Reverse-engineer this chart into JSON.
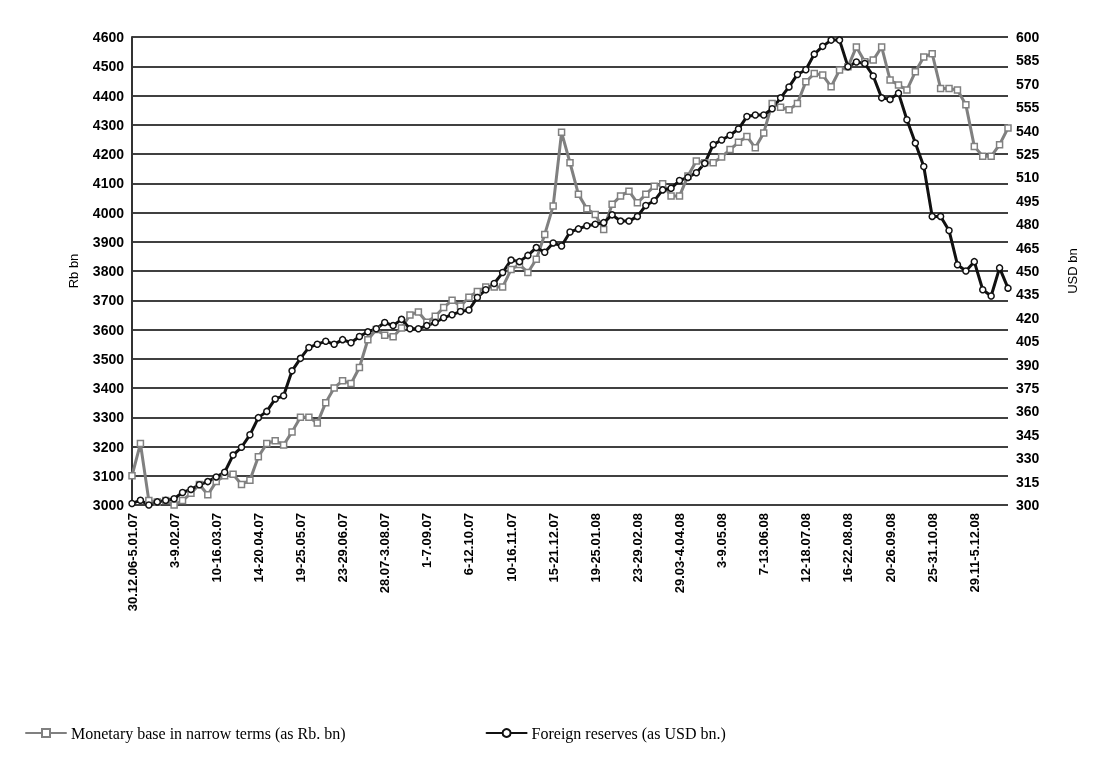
{
  "chart_data": {
    "type": "line",
    "ylabel": "Rb bn",
    "y2label": "USD bn",
    "categories": [
      "30.12.06-5.01.07",
      null,
      null,
      null,
      null,
      "3-9.02.07",
      null,
      null,
      null,
      null,
      "10-16.03.07",
      null,
      null,
      null,
      null,
      "14-20.04.07",
      null,
      null,
      null,
      null,
      "19-25.05.07",
      null,
      null,
      null,
      null,
      "23-29.06.07",
      null,
      null,
      null,
      null,
      "28.07-3.08.07",
      null,
      null,
      null,
      null,
      "1-7.09.07",
      null,
      null,
      null,
      null,
      "6-12.10.07",
      null,
      null,
      null,
      null,
      "10-16.11.07",
      null,
      null,
      null,
      null,
      "15-21.12.07",
      null,
      null,
      null,
      null,
      "19-25.01.08",
      null,
      null,
      null,
      null,
      "23-29.02.08",
      null,
      null,
      null,
      null,
      "29.03-4.04.08",
      null,
      null,
      null,
      null,
      "3-9.05.08",
      null,
      null,
      null,
      null,
      "7-13.06.08",
      null,
      null,
      null,
      null,
      "12-18.07.08",
      null,
      null,
      null,
      null,
      "16-22.08.08",
      null,
      null,
      null,
      null,
      "20-26.09.08",
      null,
      null,
      null,
      null,
      "25-31.10.08",
      null,
      null,
      null,
      null,
      "29.11-5.12.08",
      null,
      null,
      null,
      null
    ],
    "series": [
      {
        "name": "Monetary base in narrow terms (as Rb. bn)",
        "color": "#808080",
        "marker": "square",
        "values": [
          3100,
          3210,
          3015,
          3010,
          3015,
          3000,
          3015,
          3040,
          3070,
          3035,
          3080,
          3100,
          3105,
          3070,
          3085,
          3165,
          3210,
          3220,
          3205,
          3250,
          3300,
          3300,
          3280,
          3350,
          3400,
          3425,
          3415,
          3470,
          3565,
          3600,
          3580,
          3575,
          3605,
          3650,
          3660,
          3625,
          3645,
          3675,
          3700,
          3680,
          3710,
          3730,
          3745,
          3745,
          3745,
          3805,
          3822,
          3795,
          3840,
          3925,
          4022,
          4274,
          4170,
          4062,
          4013,
          3993,
          3942,
          4028,
          4056,
          4073,
          4033,
          4062,
          4090,
          4098,
          4056,
          4056,
          4125,
          4176,
          4170,
          4170,
          4190,
          4215,
          4240,
          4260,
          4221,
          4272,
          4373,
          4360,
          4351,
          4373,
          4447,
          4475,
          4470,
          4430,
          4487,
          4498,
          4566,
          4515,
          4521,
          4566,
          4453,
          4436,
          4419,
          4481,
          4532,
          4543,
          4424,
          4424,
          4419,
          4368,
          4226,
          4192,
          4192,
          4232,
          4289
        ]
      },
      {
        "name": "Foreign reserves (as USD bn.)",
        "color": "#111111",
        "marker": "circle",
        "axis": "y2",
        "values": [
          301,
          303,
          300,
          302,
          303,
          304,
          308,
          310,
          313,
          315,
          318,
          321,
          332,
          337,
          345,
          356,
          360,
          368,
          370,
          386,
          394,
          401,
          403,
          405,
          403,
          406,
          404,
          408,
          411,
          413,
          417,
          415,
          419,
          413,
          413,
          415,
          417,
          420,
          422,
          424,
          425,
          433,
          438,
          442,
          449,
          457,
          456,
          460,
          465,
          462,
          468,
          466,
          475,
          477,
          479,
          480,
          481,
          486,
          482,
          482,
          485,
          492,
          495,
          502,
          503,
          508,
          510,
          513,
          519,
          531,
          534,
          537,
          541,
          549,
          550,
          550,
          554,
          561,
          568,
          576,
          579,
          589,
          594,
          598,
          598,
          581,
          584,
          583,
          575,
          561,
          560,
          564,
          547,
          532,
          517,
          485,
          485,
          476,
          454,
          450,
          456,
          438,
          434,
          452,
          439
        ]
      }
    ],
    "ylim": [
      3000,
      4600
    ],
    "yticks": [
      3000,
      3100,
      3200,
      3300,
      3400,
      3500,
      3600,
      3700,
      3800,
      3900,
      4000,
      4100,
      4200,
      4300,
      4400,
      4500,
      4600
    ],
    "y2lim": [
      300,
      600
    ],
    "y2ticks": [
      300,
      315,
      330,
      345,
      360,
      375,
      390,
      405,
      420,
      435,
      450,
      465,
      480,
      495,
      510,
      525,
      540,
      555,
      570,
      585,
      600
    ],
    "grid": "y",
    "legend": "bottom left",
    "line_style": "solid"
  }
}
